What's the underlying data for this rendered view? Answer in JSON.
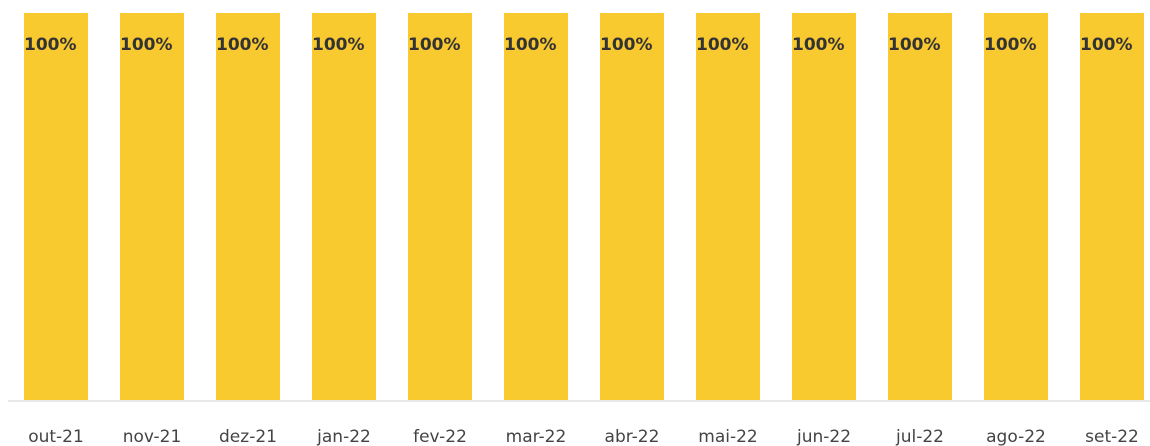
{
  "chart_data": {
    "type": "bar",
    "categories": [
      "out-21",
      "nov-21",
      "dez-21",
      "jan-22",
      "fev-22",
      "mar-22",
      "abr-22",
      "mai-22",
      "jun-22",
      "jul-22",
      "ago-22",
      "set-22"
    ],
    "values": [
      100,
      100,
      100,
      100,
      100,
      100,
      100,
      100,
      100,
      100,
      100,
      100
    ],
    "value_labels": [
      "100%",
      "100%",
      "100%",
      "100%",
      "100%",
      "100%",
      "100%",
      "100%",
      "100%",
      "100%",
      "100%",
      "100%"
    ],
    "color": "#f9ca30"
  }
}
